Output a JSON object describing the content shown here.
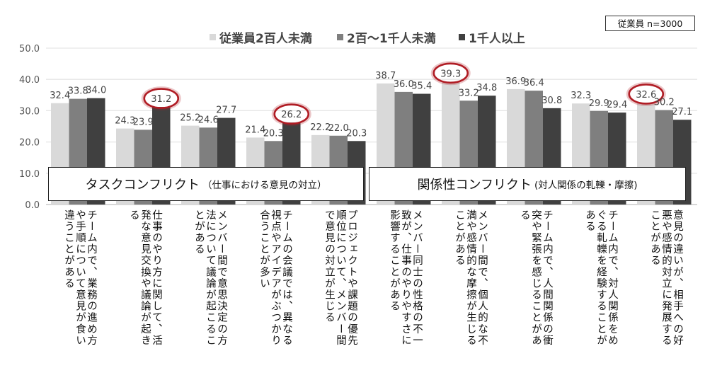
{
  "chart_data": {
    "type": "bar",
    "title": "",
    "sample_note": "従業員 n=3000",
    "xlabel": "",
    "ylabel": "",
    "ylim": [
      0,
      50
    ],
    "yticks": [
      "0.0",
      "10.0",
      "20.0",
      "30.0",
      "40.0",
      "50.0"
    ],
    "grid": true,
    "legend_position": "top",
    "categories": [
      "チーム内で、業務の進め方や手順について意見が食い違うことがある",
      "仕事のやり方に関して、活発な意見交換や議論が起きる",
      "メンバー間で意思決定の方法について議論が起こることがある",
      "チームの会議では、異なる視点やアイデアがぶつかり合うことが多い",
      "プロジェクトや課題の優先順位について、メンバー間で意見の対立が生じる",
      "メンバー同士の性格の不一致が、仕事のやりやすさに影響することがある",
      "メンバー間で、個人的な不満や感情的な摩擦が生じることがある",
      "チーム内で、人間関係の衝突や緊張を感じることがある",
      "チーム内で、対人関係をめぐる軋轢を経験することがある",
      "意見の違いが、相手への好悪や感情的対立に発展することがある"
    ],
    "series": [
      {
        "name": "従業員2百人未満",
        "color": "#d9d9d9",
        "values": [
          32.4,
          24.3,
          25.2,
          21.4,
          22.2,
          38.7,
          39.3,
          36.9,
          32.3,
          32.6
        ]
      },
      {
        "name": "2百～1千人未満",
        "color": "#7f7f7f",
        "values": [
          33.8,
          23.9,
          24.6,
          20.3,
          22.0,
          36.0,
          33.2,
          36.4,
          29.9,
          30.2
        ]
      },
      {
        "name": "1千人以上",
        "color": "#404040",
        "values": [
          34.0,
          31.2,
          27.7,
          26.2,
          20.3,
          35.4,
          34.8,
          30.8,
          29.4,
          27.1
        ]
      }
    ],
    "highlighted": [
      {
        "category_index": 1,
        "series_index": 2
      },
      {
        "category_index": 3,
        "series_index": 2
      },
      {
        "category_index": 6,
        "series_index": 0
      },
      {
        "category_index": 9,
        "series_index": 0
      }
    ],
    "highlight_color": "#b01c24",
    "groups": [
      {
        "title": "タスクコンフリクト",
        "subtitle": "（仕事における意見の対立）",
        "categories": [
          0,
          1,
          2,
          3,
          4
        ]
      },
      {
        "title": "関係性コンフリクト",
        "subtitle": "(対人関係の軋轢・摩擦)",
        "categories": [
          5,
          6,
          7,
          8,
          9
        ]
      }
    ]
  }
}
